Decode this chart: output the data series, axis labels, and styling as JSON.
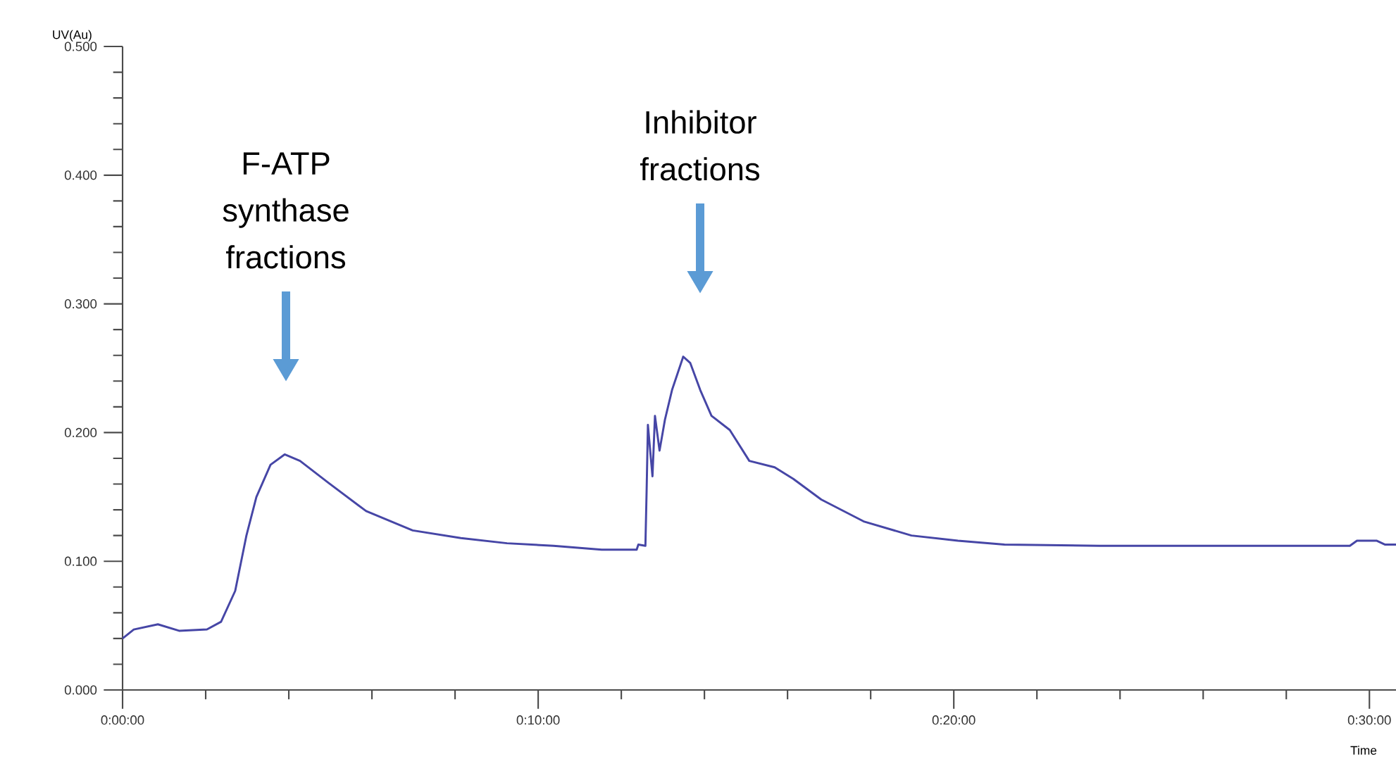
{
  "chart_data": {
    "type": "line",
    "xlabel": "Time",
    "ylabel": "UV(Au)",
    "xlim": [
      0,
      30.64
    ],
    "ylim": [
      0,
      0.5
    ],
    "xticks": [
      {
        "value": 0,
        "label": "0:00:00"
      },
      {
        "value": 2,
        "label": null
      },
      {
        "value": 4,
        "label": null
      },
      {
        "value": 6,
        "label": null
      },
      {
        "value": 8,
        "label": null
      },
      {
        "value": 10,
        "label": "0:10:00"
      },
      {
        "value": 12,
        "label": null
      },
      {
        "value": 14,
        "label": null
      },
      {
        "value": 16,
        "label": null
      },
      {
        "value": 18,
        "label": null
      },
      {
        "value": 20,
        "label": "0:20:00"
      },
      {
        "value": 22,
        "label": null
      },
      {
        "value": 24,
        "label": null
      },
      {
        "value": 26,
        "label": null
      },
      {
        "value": 28,
        "label": null
      },
      {
        "value": 30,
        "label": "0:30:00"
      }
    ],
    "yticks": [
      {
        "value": 0,
        "label": "0.000"
      },
      {
        "value": 0.02,
        "label": null
      },
      {
        "value": 0.04,
        "label": null
      },
      {
        "value": 0.06,
        "label": null
      },
      {
        "value": 0.08,
        "label": null
      },
      {
        "value": 0.1,
        "label": "0.100"
      },
      {
        "value": 0.12,
        "label": null
      },
      {
        "value": 0.14,
        "label": null
      },
      {
        "value": 0.16,
        "label": null
      },
      {
        "value": 0.18,
        "label": null
      },
      {
        "value": 0.2,
        "label": "0.200"
      },
      {
        "value": 0.22,
        "label": null
      },
      {
        "value": 0.24,
        "label": null
      },
      {
        "value": 0.26,
        "label": null
      },
      {
        "value": 0.28,
        "label": null
      },
      {
        "value": 0.3,
        "label": "0.300"
      },
      {
        "value": 0.32,
        "label": null
      },
      {
        "value": 0.34,
        "label": null
      },
      {
        "value": 0.36,
        "label": null
      },
      {
        "value": 0.38,
        "label": null
      },
      {
        "value": 0.4,
        "label": "0.400"
      },
      {
        "value": 0.42,
        "label": null
      },
      {
        "value": 0.44,
        "label": null
      },
      {
        "value": 0.46,
        "label": null
      },
      {
        "value": 0.48,
        "label": null
      },
      {
        "value": 0.5,
        "label": "0.500"
      }
    ],
    "grid": false,
    "marker": "none",
    "line_style": "solid",
    "annotations": [
      "F-ATP synthase fractions",
      "Inhibitor fractions"
    ],
    "series": [
      {
        "color": "#4646a6",
        "x": [
          0,
          0.27,
          0.85,
          1.36,
          2.03,
          2.37,
          2.71,
          2.98,
          3.22,
          3.56,
          3.9,
          4.27,
          4.95,
          5.86,
          6.98,
          8.14,
          9.25,
          10.37,
          11.53,
          12.37,
          12.41,
          12.58,
          12.61,
          12.64,
          12.75,
          12.81,
          12.92,
          13.05,
          13.22,
          13.49,
          13.66,
          13.9,
          14.17,
          14.61,
          15.08,
          15.69,
          16.14,
          16.81,
          17.83,
          18.98,
          20.1,
          21.22,
          23.5,
          26,
          29.53,
          29.7,
          30.17,
          30.37,
          30.64
        ],
        "values": [
          0.04,
          0.047,
          0.051,
          0.046,
          0.047,
          0.053,
          0.077,
          0.12,
          0.15,
          0.175,
          0.183,
          0.178,
          0.161,
          0.139,
          0.124,
          0.118,
          0.114,
          0.112,
          0.109,
          0.109,
          0.113,
          0.112,
          0.156,
          0.206,
          0.166,
          0.213,
          0.186,
          0.21,
          0.233,
          0.259,
          0.254,
          0.233,
          0.213,
          0.202,
          0.178,
          0.173,
          0.164,
          0.148,
          0.131,
          0.12,
          0.116,
          0.113,
          0.112,
          0.112,
          0.112,
          0.116,
          0.116,
          0.113,
          0.113
        ]
      }
    ]
  }
}
